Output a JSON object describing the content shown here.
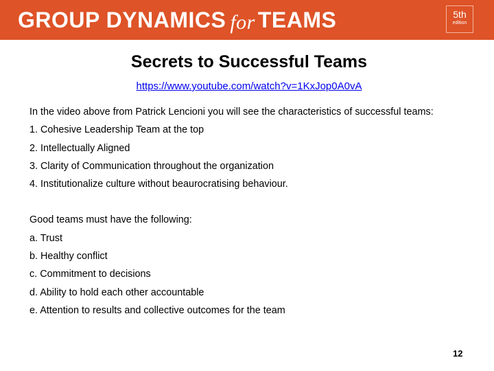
{
  "banner": {
    "title_part1": "GROUP DYNAMICS",
    "title_for": "for",
    "title_part2": "TEAMS",
    "edition_number": "5th",
    "edition_word": "edition",
    "color": "#de5327"
  },
  "slide": {
    "heading": "Secrets to Successful Teams",
    "link": "https://www.youtube.com/watch?v=1KxJop0A0vA",
    "intro": "In the video above from Patrick Lencioni you will see the characteristics of successful teams:",
    "characteristics": [
      "1. Cohesive Leadership Team at the top",
      "2. Intellectually Aligned",
      "3. Clarity of Communication throughout the organization",
      "4. Institutionalize culture without beaurocratising behaviour."
    ],
    "good_teams_intro": "Good teams must have the following:",
    "good_teams": [
      "a. Trust",
      "b. Healthy conflict",
      "c. Commitment to decisions",
      "d. Ability to hold each other accountable",
      "e. Attention to results and collective outcomes for the team"
    ],
    "page_number": "12"
  }
}
